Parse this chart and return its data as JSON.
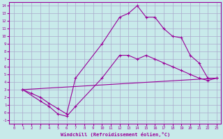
{
  "bg_color": "#c8eaea",
  "grid_color": "#aaaacc",
  "line_color": "#990099",
  "xlabel": "Windchill (Refroidissement éolien,°C)",
  "xlim": [
    -0.5,
    23.5
  ],
  "ylim": [
    -1.5,
    14.5
  ],
  "xticks": [
    0,
    1,
    2,
    3,
    4,
    5,
    6,
    7,
    8,
    9,
    10,
    11,
    12,
    13,
    14,
    15,
    16,
    17,
    18,
    19,
    20,
    21,
    22,
    23
  ],
  "yticks": [
    -1,
    0,
    1,
    2,
    3,
    4,
    5,
    6,
    7,
    8,
    9,
    10,
    11,
    12,
    13,
    14
  ],
  "line1_x": [
    1,
    2,
    3,
    4,
    5,
    6,
    7,
    10,
    12,
    13,
    14,
    15,
    16,
    17,
    18,
    19,
    20,
    21,
    22,
    23
  ],
  "line1_y": [
    3,
    2.5,
    2.0,
    1.2,
    0.5,
    -0.2,
    4.5,
    9.0,
    12.5,
    13.0,
    14.0,
    12.5,
    12.5,
    11.0,
    10.0,
    9.8,
    7.5,
    6.5,
    4.5,
    4.5
  ],
  "line2_x": [
    1,
    3,
    4,
    5,
    6,
    7,
    10,
    12,
    13,
    14,
    15,
    16,
    17,
    18,
    19,
    20,
    21,
    22,
    23
  ],
  "line2_y": [
    3,
    1.5,
    0.8,
    -0.2,
    -0.5,
    0.8,
    4.5,
    7.5,
    7.5,
    7.0,
    7.5,
    7.0,
    6.5,
    6.0,
    5.5,
    5.0,
    4.5,
    4.2,
    4.5
  ],
  "line3_x": [
    1,
    23
  ],
  "line3_y": [
    3.0,
    4.5
  ]
}
